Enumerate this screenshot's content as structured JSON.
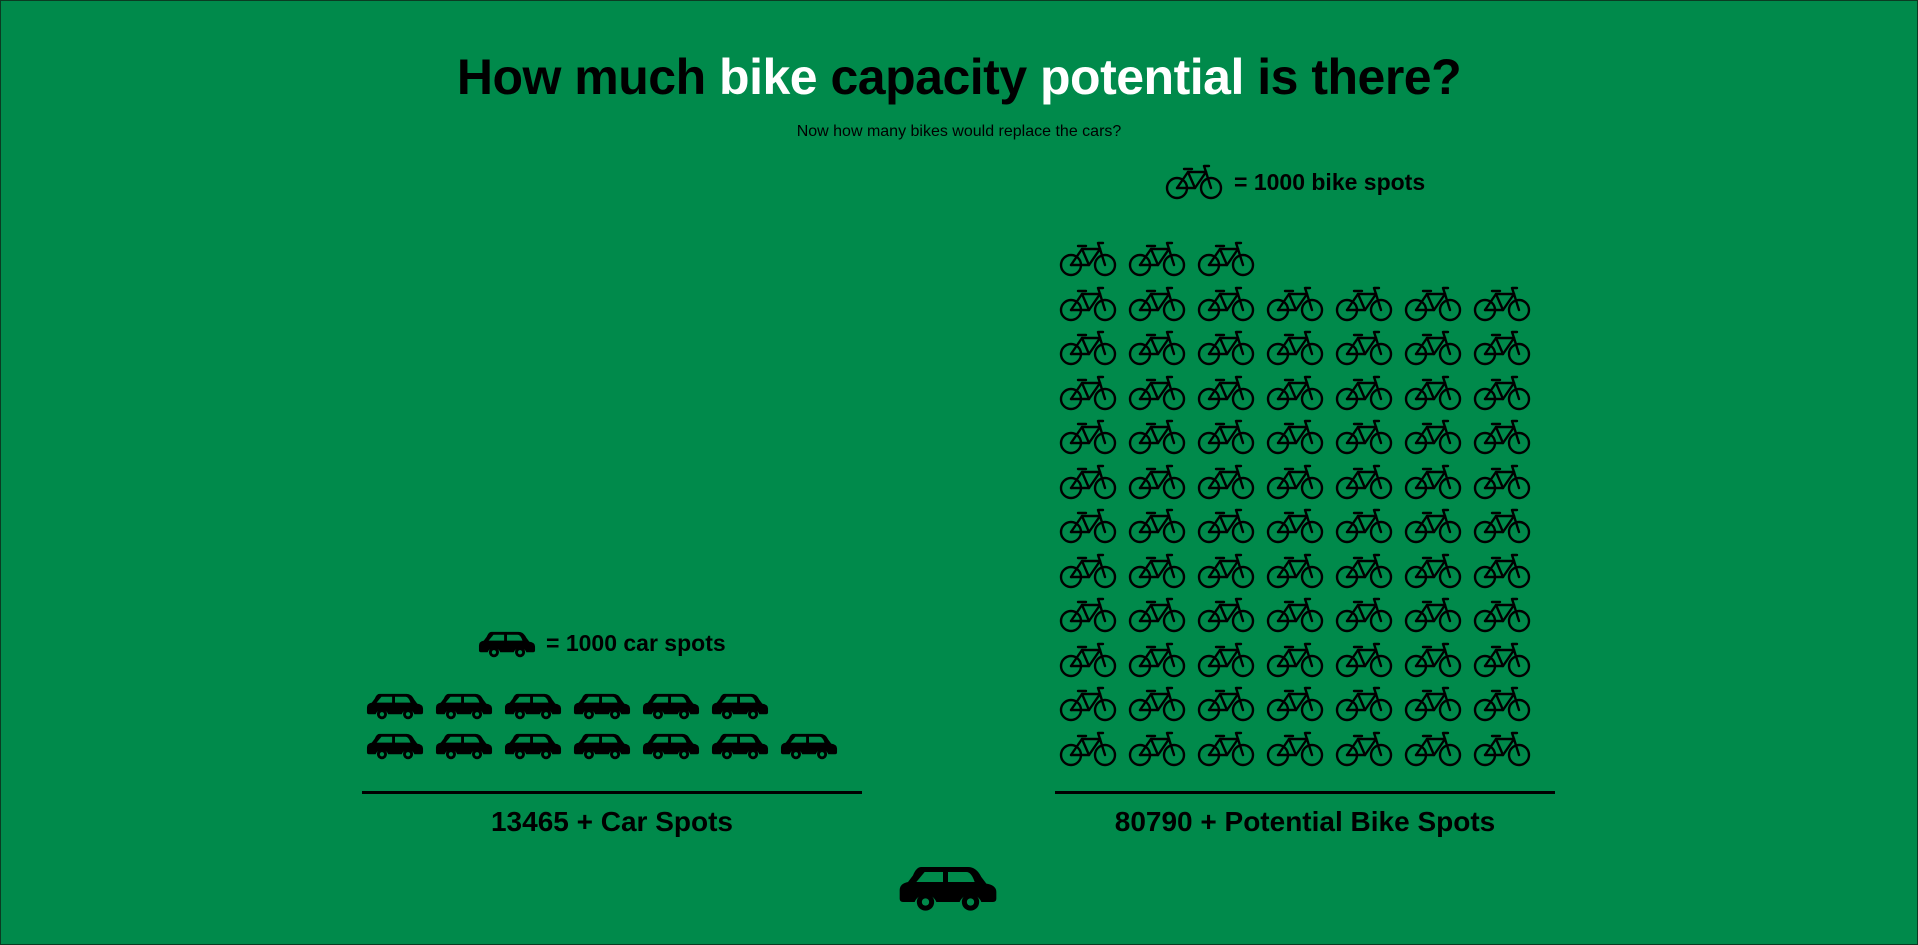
{
  "header": {
    "title_part1": "How much ",
    "title_highlight1": "bike",
    "title_part2": " capacity ",
    "title_highlight2": "potential",
    "title_part3": " is there?",
    "subtitle": "Now how many bikes would replace the cars?"
  },
  "chart_data": {
    "type": "pictogram",
    "categories": [
      "Car Spots",
      "Potential Bike Spots"
    ],
    "values": [
      13465,
      80790
    ],
    "series": [
      {
        "name": "Car Spots",
        "value": 13465,
        "icon": "car-icon",
        "icon_count": 13,
        "legend": "= 1000 car spots",
        "total_label": "13465 + Car Spots"
      },
      {
        "name": "Potential Bike Spots",
        "value": 80790,
        "icon": "bike-icon",
        "icon_count": 80,
        "legend": "= 1000 bike spots",
        "total_label": "80790 + Potential Bike Spots"
      }
    ]
  },
  "footer": {
    "icon": "car-icon"
  },
  "colors": {
    "background": "#008a4b",
    "highlight": "#ffffff",
    "ink": "#000000"
  }
}
